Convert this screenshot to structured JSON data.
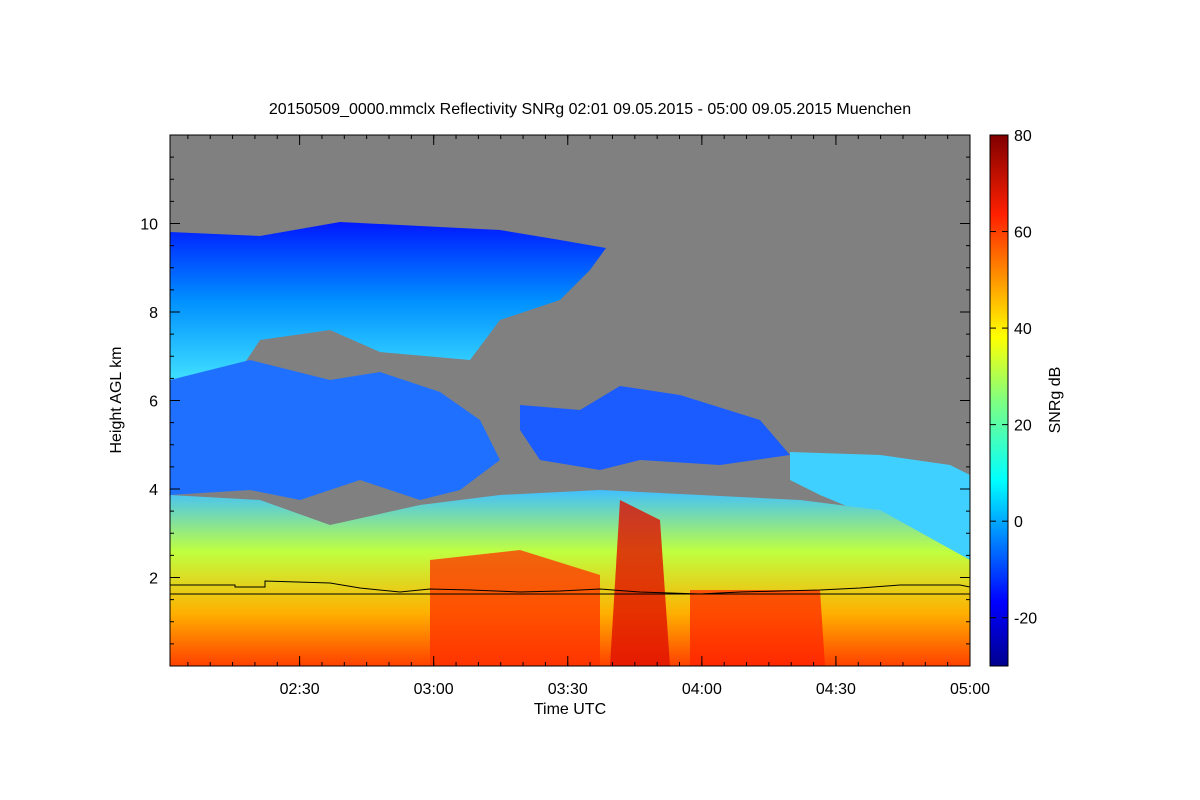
{
  "chart_data": {
    "type": "heatmap",
    "title": "20150509_0000.mmclx Reflectivity SNRg   02:01 09.05.2015 - 05:00 09.05.2015 Muenchen",
    "xlabel": "Time UTC",
    "ylabel": "Height AGL km",
    "x_range": [
      "02:01",
      "05:00"
    ],
    "y_range": [
      0,
      12
    ],
    "x_ticks": [
      "02:30",
      "03:00",
      "03:30",
      "04:00",
      "04:30",
      "05:00"
    ],
    "y_ticks": [
      "2",
      "4",
      "6",
      "8",
      "10"
    ],
    "colorbar": {
      "label": "SNRg dB",
      "range": [
        -30,
        80
      ],
      "ticks": [
        "-20",
        "0",
        "20",
        "40",
        "60",
        "80"
      ],
      "colormap": "jet"
    },
    "no_data_color": "#808080",
    "overlay_lines": [
      {
        "y_km": 1.8
      },
      {
        "y_km_approx": 1.95
      }
    ]
  }
}
